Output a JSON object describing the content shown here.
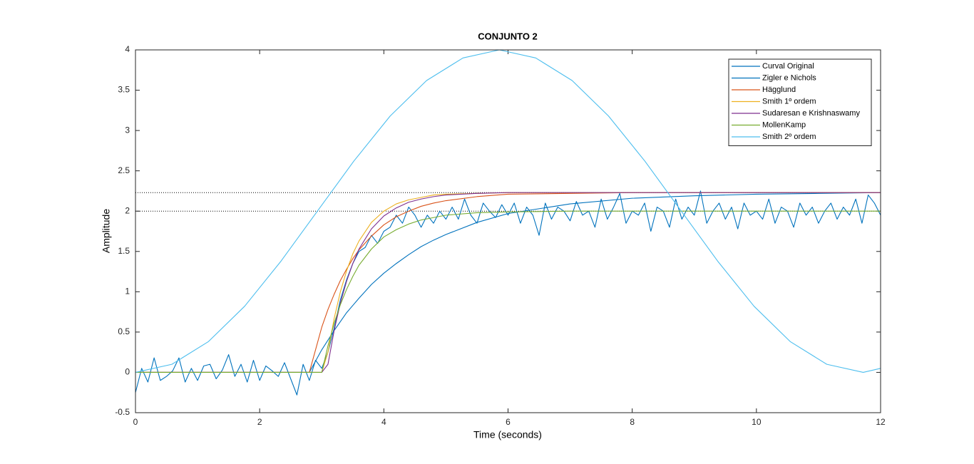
{
  "chart_data": {
    "type": "line",
    "title": "CONJUNTO 2",
    "xlabel": "Time (seconds)",
    "ylabel": "Amplitude",
    "xlim": [
      0,
      12
    ],
    "ylim": [
      -0.5,
      4
    ],
    "xticks": [
      0,
      2,
      4,
      6,
      8,
      10,
      12
    ],
    "yticks": [
      -0.5,
      0,
      0.5,
      1,
      1.5,
      2,
      2.5,
      3,
      3.5,
      4
    ],
    "reference_lines": [
      2.23,
      2
    ],
    "legend": "northeast",
    "series": [
      {
        "name": "Curval Original",
        "color": "#0072BD",
        "x": [
          0,
          0.1,
          0.2,
          0.3,
          0.4,
          0.5,
          0.6,
          0.7,
          0.8,
          0.9,
          1,
          1.1,
          1.2,
          1.3,
          1.4,
          1.5,
          1.6,
          1.7,
          1.8,
          1.9,
          2,
          2.1,
          2.2,
          2.3,
          2.4,
          2.5,
          2.6,
          2.7,
          2.8,
          2.9,
          3,
          3.1,
          3.2,
          3.3,
          3.4,
          3.5,
          3.6,
          3.7,
          3.8,
          3.9,
          4,
          4.1,
          4.2,
          4.3,
          4.4,
          4.5,
          4.6,
          4.7,
          4.8,
          4.9,
          5,
          5.1,
          5.2,
          5.3,
          5.4,
          5.5,
          5.6,
          5.7,
          5.8,
          5.9,
          6,
          6.1,
          6.2,
          6.3,
          6.4,
          6.5,
          6.6,
          6.7,
          6.8,
          6.9,
          7,
          7.1,
          7.2,
          7.3,
          7.4,
          7.5,
          7.6,
          7.7,
          7.8,
          7.9,
          8,
          8.1,
          8.2,
          8.3,
          8.4,
          8.5,
          8.6,
          8.7,
          8.8,
          8.9,
          9,
          9.1,
          9.2,
          9.3,
          9.4,
          9.5,
          9.6,
          9.7,
          9.8,
          9.9,
          10,
          10.1,
          10.2,
          10.3,
          10.4,
          10.5,
          10.6,
          10.7,
          10.8,
          10.9,
          11,
          11.1,
          11.2,
          11.3,
          11.4,
          11.5,
          11.6,
          11.7,
          11.8,
          11.9,
          12
        ],
        "values": [
          -0.25,
          0.05,
          -0.12,
          0.18,
          -0.1,
          -0.05,
          0.02,
          0.18,
          -0.12,
          0.05,
          -0.1,
          0.08,
          0.1,
          -0.08,
          0.03,
          0.22,
          -0.05,
          0.1,
          -0.12,
          0.15,
          -0.1,
          0.08,
          0.02,
          -0.05,
          0.12,
          -0.08,
          -0.28,
          0.1,
          -0.1,
          0.15,
          0.05,
          0.25,
          0.55,
          0.9,
          1.15,
          1.35,
          1.5,
          1.55,
          1.7,
          1.6,
          1.75,
          1.8,
          1.95,
          1.85,
          2.05,
          1.95,
          1.8,
          1.95,
          1.85,
          2.0,
          1.9,
          2.05,
          1.9,
          2.15,
          1.95,
          1.85,
          2.1,
          2.0,
          1.92,
          2.08,
          1.95,
          2.1,
          1.85,
          2.05,
          1.95,
          1.7,
          2.1,
          1.9,
          2.05,
          2.0,
          1.88,
          2.12,
          1.95,
          2.0,
          1.8,
          2.15,
          1.9,
          2.05,
          2.22,
          1.85,
          2.0,
          1.95,
          2.1,
          1.75,
          2.05,
          2.0,
          1.8,
          2.15,
          1.9,
          2.05,
          1.95,
          2.25,
          1.85,
          2.0,
          2.1,
          1.9,
          2.05,
          1.78,
          2.1,
          1.95,
          2.0,
          1.9,
          2.15,
          1.85,
          2.05,
          2.0,
          1.8,
          2.1,
          1.95,
          2.05,
          1.85,
          2.0,
          2.1,
          1.9,
          2.05,
          1.95,
          2.15,
          1.85,
          2.2,
          2.1,
          1.95
        ]
      },
      {
        "name": "Zigler e Nichols",
        "color": "#0072BD",
        "x": [
          0,
          2.8,
          3.0,
          3.1,
          3.2,
          3.3,
          3.4,
          3.5,
          3.6,
          3.8,
          4.0,
          4.2,
          4.4,
          4.6,
          4.8,
          5.0,
          5.5,
          6,
          7,
          8,
          9,
          10,
          11,
          12
        ],
        "values": [
          0,
          0,
          0.28,
          0.4,
          0.52,
          0.63,
          0.74,
          0.83,
          0.92,
          1.09,
          1.23,
          1.35,
          1.46,
          1.56,
          1.64,
          1.71,
          1.86,
          1.97,
          2.09,
          2.16,
          2.19,
          2.21,
          2.22,
          2.23
        ]
      },
      {
        "name": "Hägglund",
        "color": "#D95319",
        "x": [
          0,
          2.8,
          3.0,
          3.1,
          3.2,
          3.3,
          3.4,
          3.5,
          3.6,
          3.8,
          4.0,
          4.2,
          4.4,
          4.6,
          4.8,
          5.0,
          5.5,
          6,
          7,
          8,
          9,
          10,
          11,
          12
        ],
        "values": [
          0,
          0,
          0.56,
          0.78,
          0.97,
          1.14,
          1.28,
          1.41,
          1.52,
          1.69,
          1.83,
          1.93,
          2.0,
          2.06,
          2.1,
          2.13,
          2.18,
          2.21,
          2.22,
          2.23,
          2.23,
          2.23,
          2.23,
          2.23
        ]
      },
      {
        "name": "Smith 1º ordem",
        "color": "#EDB120",
        "x": [
          0,
          2.8,
          3.0,
          3.1,
          3.2,
          3.3,
          3.4,
          3.5,
          3.6,
          3.8,
          4.0,
          4.2,
          4.4,
          4.6,
          4.8,
          5.0,
          5.5,
          6,
          7,
          8,
          9,
          10,
          11,
          12
        ],
        "values": [
          0,
          0,
          0,
          0.25,
          0.67,
          1.0,
          1.26,
          1.47,
          1.63,
          1.86,
          2.0,
          2.09,
          2.14,
          2.17,
          2.2,
          2.21,
          2.22,
          2.23,
          2.23,
          2.23,
          2.23,
          2.23,
          2.23,
          2.23
        ]
      },
      {
        "name": "Sudaresan e Krishnaswamy",
        "color": "#7E2F8E",
        "x": [
          0,
          2.8,
          3.0,
          3.1,
          3.2,
          3.3,
          3.4,
          3.5,
          3.6,
          3.8,
          4.0,
          4.2,
          4.4,
          4.6,
          4.8,
          5.0,
          5.5,
          6,
          7,
          8,
          9,
          10,
          11,
          12
        ],
        "values": [
          0,
          0,
          0,
          0.1,
          0.52,
          0.86,
          1.13,
          1.35,
          1.53,
          1.78,
          1.94,
          2.04,
          2.11,
          2.15,
          2.18,
          2.2,
          2.22,
          2.23,
          2.23,
          2.23,
          2.23,
          2.23,
          2.23,
          2.23
        ]
      },
      {
        "name": "MollenKamp",
        "color": "#77AC30",
        "x": [
          0,
          2.8,
          3.0,
          3.1,
          3.2,
          3.3,
          3.4,
          3.5,
          3.6,
          3.8,
          4.0,
          4.2,
          4.4,
          4.6,
          4.8,
          5.0,
          5.5,
          6,
          7,
          8,
          9,
          10,
          11,
          12
        ],
        "values": [
          0,
          0,
          0,
          0.33,
          0.61,
          0.84,
          1.03,
          1.19,
          1.33,
          1.53,
          1.68,
          1.77,
          1.84,
          1.89,
          1.92,
          1.95,
          1.98,
          1.99,
          2,
          2,
          2,
          2,
          2,
          2
        ]
      },
      {
        "name": "Smith 2º ordem",
        "color": "#4DBEEE",
        "x": [
          0,
          0.586,
          1.172,
          1.758,
          2.344,
          2.93,
          3.516,
          4.102,
          4.688,
          5.274,
          5.86,
          6.446,
          7.032,
          7.618,
          8.204,
          8.79,
          9.376,
          9.962,
          10.548,
          11.134,
          11.72,
          12
        ],
        "values": [
          0,
          0.1,
          0.38,
          0.82,
          1.38,
          2.0,
          2.62,
          3.18,
          3.62,
          3.9,
          4.0,
          3.9,
          3.62,
          3.18,
          2.62,
          2.0,
          1.38,
          0.82,
          0.38,
          0.1,
          0,
          0.05
        ]
      }
    ]
  }
}
